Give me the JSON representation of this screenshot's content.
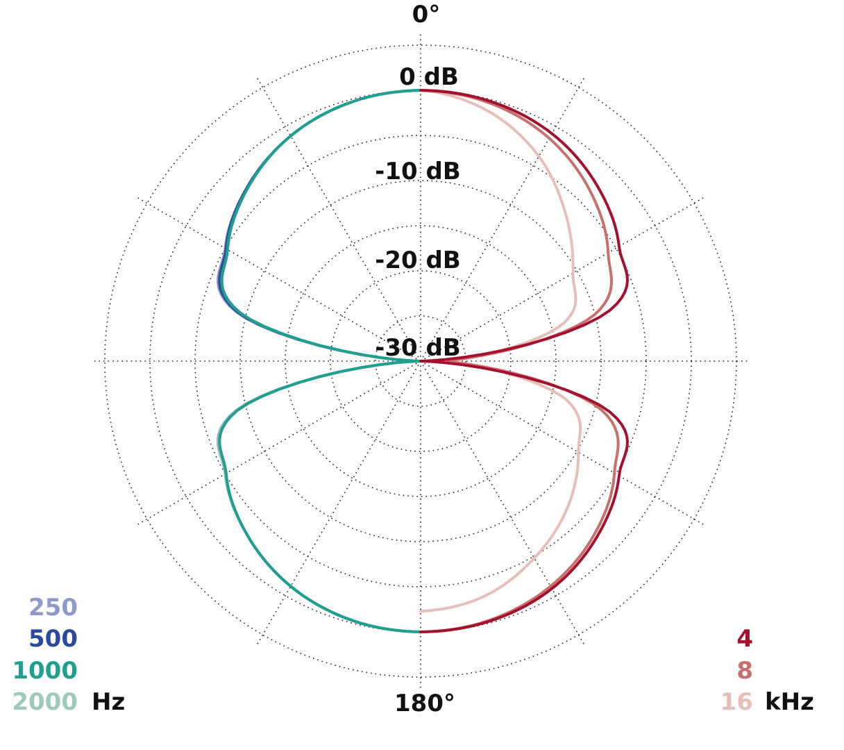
{
  "chart_data": {
    "type": "polar",
    "title": "",
    "angle_labels": {
      "top": "0°",
      "bottom": "180°"
    },
    "radial_ticks": [
      "0 dB",
      "-10 dB",
      "-20 dB",
      "-30 dB"
    ],
    "radial_range_db": [
      -30,
      0
    ],
    "grid": true,
    "legend_left": {
      "unit": "Hz",
      "entries": [
        {
          "label": "250",
          "color": "#8e9acb"
        },
        {
          "label": "500",
          "color": "#2b4a9a"
        },
        {
          "label": "1000",
          "color": "#1fa08f"
        },
        {
          "label": "2000",
          "color": "#9ccbb9"
        }
      ]
    },
    "legend_right": {
      "unit": "kHz",
      "entries": [
        {
          "label": "4",
          "color": "#a4102e"
        },
        {
          "label": "8",
          "color": "#c8706e"
        },
        {
          "label": "16",
          "color": "#e6bfba"
        }
      ]
    },
    "angles_deg": [
      0,
      15,
      30,
      45,
      60,
      75,
      90,
      105,
      120,
      135,
      150,
      165,
      180
    ],
    "series": [
      {
        "name": "250",
        "side": "left",
        "color": "#8e9acb",
        "values_db": [
          0,
          -0.3,
          -1.2,
          -2.8,
          -5,
          -8.8,
          -30,
          -8.8,
          -5,
          -2.8,
          -1.2,
          -0.3,
          0
        ]
      },
      {
        "name": "500",
        "side": "left",
        "color": "#2b4a9a",
        "values_db": [
          0,
          -0.3,
          -1.2,
          -2.8,
          -5.1,
          -9,
          -30,
          -9,
          -5.1,
          -2.8,
          -1.2,
          -0.3,
          0
        ]
      },
      {
        "name": "2000",
        "side": "left",
        "color": "#9ccbb9",
        "values_db": [
          0,
          -0.3,
          -1.2,
          -2.9,
          -5.3,
          -9.3,
          -30,
          -8.9,
          -5,
          -2.8,
          -1.2,
          -0.3,
          0
        ]
      },
      {
        "name": "1000",
        "side": "left",
        "color": "#1fa08f",
        "values_db": [
          0,
          -0.3,
          -1.2,
          -2.9,
          -5.3,
          -9.3,
          -30,
          -9,
          -5.1,
          -2.8,
          -1.2,
          -0.3,
          0
        ]
      },
      {
        "name": "16",
        "side": "right",
        "color": "#e6bfba",
        "values_db": [
          0,
          -1.3,
          -3.8,
          -7.2,
          -10.5,
          -13.5,
          -26.5,
          -13.2,
          -9.8,
          -7,
          -4.8,
          -3,
          -2.3
        ]
      },
      {
        "name": "8",
        "side": "right",
        "color": "#c8706e",
        "values_db": [
          0,
          -0.4,
          -1.5,
          -3.4,
          -6,
          -10,
          -27,
          -9.3,
          -5.2,
          -2.8,
          -1.2,
          -0.3,
          0
        ]
      },
      {
        "name": "4",
        "side": "right",
        "color": "#a4102e",
        "values_db": [
          0,
          -0.2,
          -0.9,
          -2.4,
          -4.6,
          -8.3,
          -30,
          -8.3,
          -4.6,
          -2.4,
          -0.9,
          -0.2,
          0
        ]
      }
    ]
  }
}
